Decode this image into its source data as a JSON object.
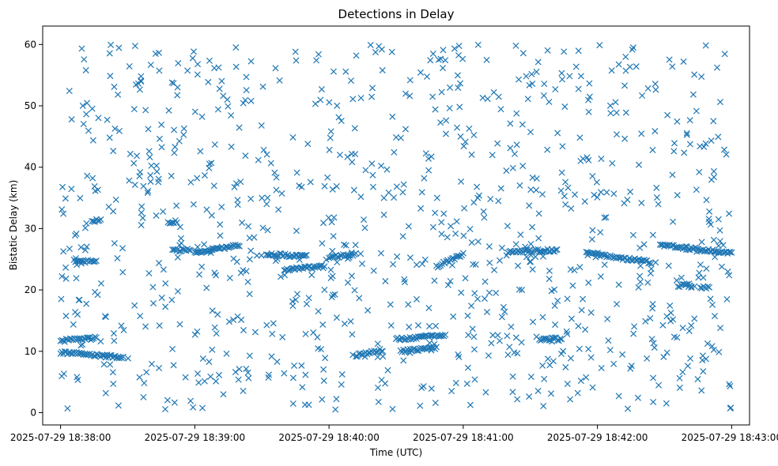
{
  "chart_data": {
    "type": "scatter",
    "title": "Detections in Delay",
    "xlabel": "Time (UTC)",
    "ylabel": "Bistatic Delay (km)",
    "marker": "x",
    "color": "#1f77b4",
    "grid": false,
    "xlim": [
      "2025-07-29 18:37:52",
      "2025-07-29 18:43:08"
    ],
    "ylim": [
      -2,
      63
    ],
    "xticks": [
      "2025-07-29 18:38:00",
      "2025-07-29 18:39:00",
      "2025-07-29 18:40:00",
      "2025-07-29 18:41:00",
      "2025-07-29 18:42:00",
      "2025-07-29 18:43:00"
    ],
    "yticks": [
      0,
      10,
      20,
      30,
      40,
      50,
      60
    ],
    "tracks": [
      {
        "from": "2025-07-29 18:38:00",
        "to": "2025-07-29 18:38:16",
        "delay_start": 11.7,
        "delay_end": 12.2
      },
      {
        "from": "2025-07-29 18:38:00",
        "to": "2025-07-29 18:38:28",
        "delay_start": 9.8,
        "delay_end": 9.0
      },
      {
        "from": "2025-07-29 18:38:06",
        "to": "2025-07-29 18:38:16",
        "delay_start": 24.7,
        "delay_end": 24.7
      },
      {
        "from": "2025-07-29 18:38:14",
        "to": "2025-07-29 18:38:18",
        "delay_start": 31.3,
        "delay_end": 31.3
      },
      {
        "from": "2025-07-29 18:38:48",
        "to": "2025-07-29 18:38:52",
        "delay_start": 31.1,
        "delay_end": 31.1
      },
      {
        "from": "2025-07-29 18:38:50",
        "to": "2025-07-29 18:38:58",
        "delay_start": 26.5,
        "delay_end": 26.5
      },
      {
        "from": "2025-07-29 18:39:00",
        "to": "2025-07-29 18:39:20",
        "delay_start": 26.0,
        "delay_end": 27.3
      },
      {
        "from": "2025-07-29 18:39:32",
        "to": "2025-07-29 18:39:50",
        "delay_start": 25.8,
        "delay_end": 25.5
      },
      {
        "from": "2025-07-29 18:39:40",
        "to": "2025-07-29 18:39:58",
        "delay_start": 23.3,
        "delay_end": 23.8
      },
      {
        "from": "2025-07-29 18:40:00",
        "to": "2025-07-29 18:40:12",
        "delay_start": 25.3,
        "delay_end": 25.8
      },
      {
        "from": "2025-07-29 18:40:12",
        "to": "2025-07-29 18:40:24",
        "delay_start": 9.3,
        "delay_end": 10.2
      },
      {
        "from": "2025-07-29 18:40:30",
        "to": "2025-07-29 18:40:52",
        "delay_start": 12.0,
        "delay_end": 12.6
      },
      {
        "from": "2025-07-29 18:40:32",
        "to": "2025-07-29 18:40:48",
        "delay_start": 10.0,
        "delay_end": 10.6
      },
      {
        "from": "2025-07-29 18:40:48",
        "to": "2025-07-29 18:41:00",
        "delay_start": 23.8,
        "delay_end": 25.8
      },
      {
        "from": "2025-07-29 18:41:20",
        "to": "2025-07-29 18:41:42",
        "delay_start": 26.2,
        "delay_end": 26.5
      },
      {
        "from": "2025-07-29 18:41:34",
        "to": "2025-07-29 18:41:44",
        "delay_start": 12.0,
        "delay_end": 12.0
      },
      {
        "from": "2025-07-29 18:41:55",
        "to": "2025-07-29 18:42:24",
        "delay_start": 26.0,
        "delay_end": 24.5
      },
      {
        "from": "2025-07-29 18:42:28",
        "to": "2025-07-29 18:43:00",
        "delay_start": 27.3,
        "delay_end": 26.0
      },
      {
        "from": "2025-07-29 18:42:36",
        "to": "2025-07-29 18:42:42",
        "delay_start": 20.7,
        "delay_end": 20.7
      },
      {
        "from": "2025-07-29 18:42:46",
        "to": "2025-07-29 18:42:50",
        "delay_start": 20.4,
        "delay_end": 20.4
      }
    ],
    "clutter": {
      "count": 950,
      "from": "2025-07-29 18:38:00",
      "to": "2025-07-29 18:43:00",
      "delay_min": 0.5,
      "delay_max": 60
    }
  }
}
